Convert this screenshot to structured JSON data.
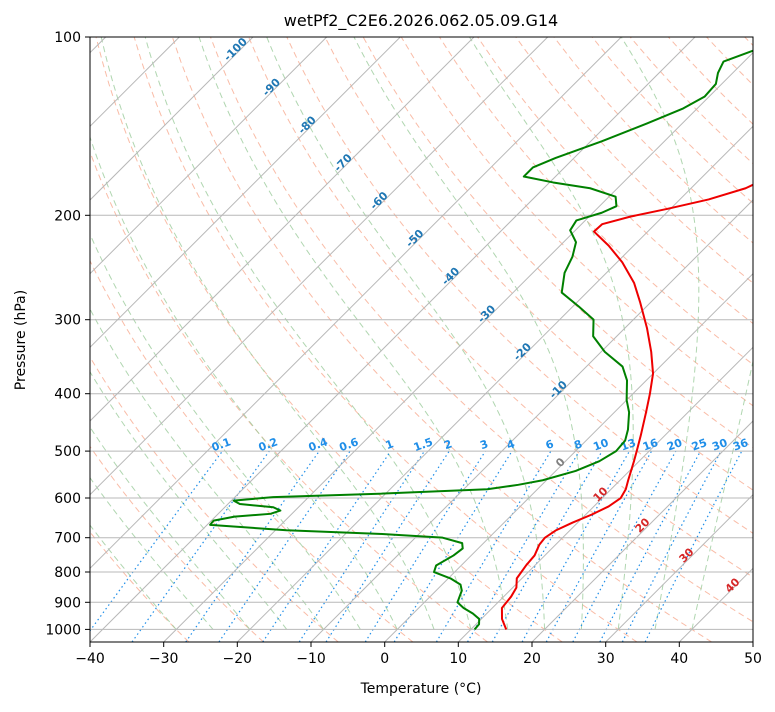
{
  "chart_data": {
    "type": "line",
    "title": "wetPf2_C2E6.2026.062.05.09.G14",
    "xlabel": "Temperature (°C)",
    "ylabel": "Pressure (hPa)",
    "xlim": [
      -40,
      50
    ],
    "ylim": [
      1050,
      100
    ],
    "x_ticks": [
      -40,
      -30,
      -20,
      -10,
      0,
      10,
      20,
      30,
      40,
      50
    ],
    "x_tick_labels": [
      "−40",
      "−30",
      "−20",
      "−10",
      "0",
      "10",
      "20",
      "30",
      "40",
      "50"
    ],
    "y_ticks": [
      1000,
      900,
      800,
      700,
      600,
      500,
      400,
      300,
      200,
      100
    ],
    "y_tick_labels": [
      "1000",
      "900",
      "800",
      "700",
      "600",
      "500",
      "400",
      "300",
      "200",
      "100"
    ],
    "skew": 1.0,
    "colors": {
      "temperature": "#ee0000",
      "dewpoint": "#008000",
      "isotherm": "#b8b8b8",
      "dry_adiabat": "#f7a689",
      "moist_adiabat": "#9ccc9c",
      "mixing_ratio": "#1f8ee8",
      "saturation_mix": "#d2b48c",
      "isotherm_label_blue": "#1f77b4",
      "adiabat_label_red": "#d62728"
    },
    "series": [
      {
        "name": "Temperature",
        "color": "#ee0000",
        "points": [
          {
            "p": 1000,
            "t": 14.8
          },
          {
            "p": 960,
            "t": 12.8
          },
          {
            "p": 920,
            "t": 11.3
          },
          {
            "p": 880,
            "t": 11.0
          },
          {
            "p": 850,
            "t": 10.5
          },
          {
            "p": 820,
            "t": 9.3
          },
          {
            "p": 780,
            "t": 8.8
          },
          {
            "p": 750,
            "t": 8.6
          },
          {
            "p": 720,
            "t": 7.8
          },
          {
            "p": 700,
            "t": 7.6
          },
          {
            "p": 680,
            "t": 8.1
          },
          {
            "p": 660,
            "t": 9.3
          },
          {
            "p": 640,
            "t": 10.8
          },
          {
            "p": 620,
            "t": 12.0
          },
          {
            "p": 600,
            "t": 12.5
          },
          {
            "p": 580,
            "t": 12.0
          },
          {
            "p": 560,
            "t": 11.1
          },
          {
            "p": 520,
            "t": 9.3
          },
          {
            "p": 500,
            "t": 8.3
          },
          {
            "p": 470,
            "t": 6.7
          },
          {
            "p": 430,
            "t": 4.3
          },
          {
            "p": 400,
            "t": 2.3
          },
          {
            "p": 370,
            "t": 0.0
          },
          {
            "p": 340,
            "t": -3.2
          },
          {
            "p": 310,
            "t": -7.0
          },
          {
            "p": 280,
            "t": -11.5
          },
          {
            "p": 260,
            "t": -14.9
          },
          {
            "p": 240,
            "t": -19.3
          },
          {
            "p": 225,
            "t": -23.4
          },
          {
            "p": 213,
            "t": -27.3
          },
          {
            "p": 207,
            "t": -27.2
          },
          {
            "p": 201,
            "t": -24.4
          },
          {
            "p": 195,
            "t": -20.4
          },
          {
            "p": 188,
            "t": -16.1
          },
          {
            "p": 180,
            "t": -12.6
          },
          {
            "p": 172,
            "t": -10.8
          },
          {
            "p": 163,
            "t": -10.2
          },
          {
            "p": 150,
            "t": -12.1
          },
          {
            "p": 140,
            "t": -13.5
          },
          {
            "p": 130,
            "t": -14.9
          },
          {
            "p": 122,
            "t": -17.1
          },
          {
            "p": 115,
            "t": -22.0
          },
          {
            "p": 108,
            "t": -26.9
          },
          {
            "p": 100,
            "t": -32.0
          }
        ]
      },
      {
        "name": "Dewpoint",
        "color": "#008000",
        "points": [
          {
            "p": 1000,
            "t": 10.5
          },
          {
            "p": 980,
            "t": 10.4
          },
          {
            "p": 960,
            "t": 9.7
          },
          {
            "p": 940,
            "t": 8.1
          },
          {
            "p": 920,
            "t": 6.1
          },
          {
            "p": 900,
            "t": 4.5
          },
          {
            "p": 880,
            "t": 4.0
          },
          {
            "p": 860,
            "t": 3.5
          },
          {
            "p": 840,
            "t": 2.5
          },
          {
            "p": 820,
            "t": 0.3
          },
          {
            "p": 800,
            "t": -2.8
          },
          {
            "p": 780,
            "t": -3.4
          },
          {
            "p": 750,
            "t": -2.4
          },
          {
            "p": 730,
            "t": -2.1
          },
          {
            "p": 715,
            "t": -2.9
          },
          {
            "p": 700,
            "t": -6.3
          },
          {
            "p": 690,
            "t": -15.0
          },
          {
            "p": 680,
            "t": -28.5
          },
          {
            "p": 666,
            "t": -39.6
          },
          {
            "p": 655,
            "t": -39.7
          },
          {
            "p": 645,
            "t": -37.4
          },
          {
            "p": 638,
            "t": -32.9
          },
          {
            "p": 630,
            "t": -32.0
          },
          {
            "p": 622,
            "t": -33.4
          },
          {
            "p": 614,
            "t": -38.4
          },
          {
            "p": 606,
            "t": -39.7
          },
          {
            "p": 598,
            "t": -34.8
          },
          {
            "p": 590,
            "t": -20.9
          },
          {
            "p": 580,
            "t": -6.8
          },
          {
            "p": 570,
            "t": -3.2
          },
          {
            "p": 560,
            "t": -0.5
          },
          {
            "p": 540,
            "t": 2.7
          },
          {
            "p": 520,
            "t": 4.6
          },
          {
            "p": 500,
            "t": 5.5
          },
          {
            "p": 480,
            "t": 5.3
          },
          {
            "p": 460,
            "t": 4.2
          },
          {
            "p": 430,
            "t": 2.0
          },
          {
            "p": 410,
            "t": 0.0
          },
          {
            "p": 380,
            "t": -2.6
          },
          {
            "p": 360,
            "t": -5.1
          },
          {
            "p": 340,
            "t": -9.5
          },
          {
            "p": 320,
            "t": -13.2
          },
          {
            "p": 300,
            "t": -15.4
          },
          {
            "p": 285,
            "t": -19.2
          },
          {
            "p": 270,
            "t": -23.4
          },
          {
            "p": 250,
            "t": -25.7
          },
          {
            "p": 235,
            "t": -26.8
          },
          {
            "p": 222,
            "t": -28.3
          },
          {
            "p": 212,
            "t": -30.7
          },
          {
            "p": 204,
            "t": -31.2
          },
          {
            "p": 198,
            "t": -28.8
          },
          {
            "p": 193,
            "t": -27.7
          },
          {
            "p": 186,
            "t": -29.1
          },
          {
            "p": 180,
            "t": -33.7
          },
          {
            "p": 176,
            "t": -39.5
          },
          {
            "p": 172,
            "t": -44.3
          },
          {
            "p": 166,
            "t": -44.3
          },
          {
            "p": 160,
            "t": -42.5
          },
          {
            "p": 150,
            "t": -38.5
          },
          {
            "p": 140,
            "t": -34.8
          },
          {
            "p": 132,
            "t": -31.9
          },
          {
            "p": 126,
            "t": -30.6
          },
          {
            "p": 120,
            "t": -30.8
          },
          {
            "p": 115,
            "t": -32.0
          },
          {
            "p": 110,
            "t": -32.8
          },
          {
            "p": 105,
            "t": -30.0
          },
          {
            "p": 100,
            "t": -24.9
          }
        ]
      }
    ],
    "isotherm_labels": [
      "-100",
      "-90",
      "-80",
      "-70",
      "-60",
      "-50",
      "-40",
      "-30",
      "-20",
      "-10"
    ],
    "isotherm_label_values": [
      -100,
      -90,
      -80,
      -70,
      -60,
      -50,
      -40,
      -30,
      -20,
      -10
    ],
    "mixing_ratio_values": [
      0.1,
      0.2,
      0.4,
      0.6,
      1,
      1.5,
      2,
      3,
      4,
      6,
      8,
      10,
      13,
      16,
      20,
      25,
      30,
      36
    ],
    "mixing_ratio_labels": [
      "0.1",
      "0.2",
      "0.4",
      "0.6",
      "1",
      "1.5",
      "2",
      "3",
      "4",
      "6",
      "8",
      "10",
      "13",
      "16",
      "20",
      "25",
      "30",
      "36"
    ],
    "adiabat_labels": [
      {
        "text": "0",
        "t500": 24
      },
      {
        "text": "10",
        "t500": 30
      },
      {
        "text": "20",
        "t500": 36
      },
      {
        "text": "30",
        "t500": 42
      },
      {
        "text": "40",
        "t500": 48
      }
    ]
  }
}
